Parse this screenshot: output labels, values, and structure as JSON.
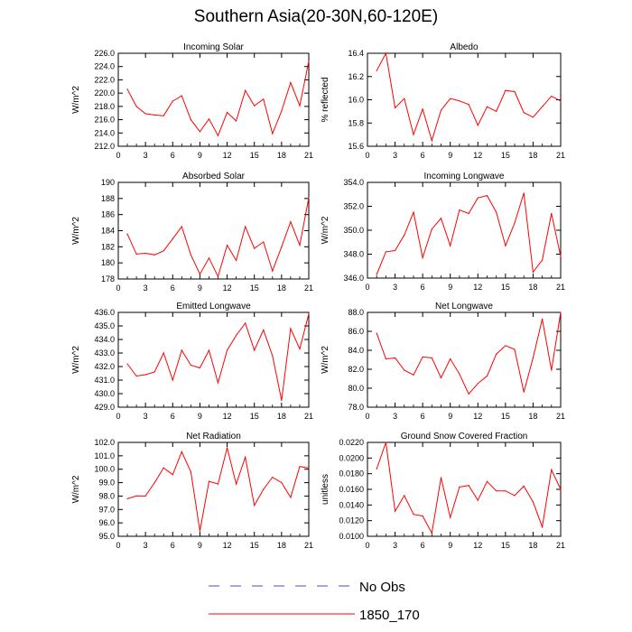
{
  "figure": {
    "title": "Southern Asia(20-30N,60-120E)",
    "legend": [
      {
        "label": "No Obs",
        "color": "#4b4bbf",
        "dashed": true
      },
      {
        "label": "1850_170",
        "color": "#ff0000",
        "dashed": false
      }
    ]
  },
  "chart_data": [
    {
      "type": "line",
      "title": "Incoming Solar",
      "ylabel": "W/m^2",
      "xlim": [
        0,
        21
      ],
      "ylim": [
        212,
        226
      ],
      "xticks": [
        0,
        3,
        6,
        9,
        12,
        15,
        18,
        21
      ],
      "yticks": [
        212,
        214,
        216,
        218,
        220,
        222,
        224,
        226
      ],
      "ytick_labels": [
        "212.0",
        "214.0",
        "216.0",
        "218.0",
        "220.0",
        "222.0",
        "224.0",
        "226.0"
      ],
      "series": [
        {
          "name": "1850_170",
          "color": "#ff0000",
          "x": [
            1,
            2,
            3,
            4,
            5,
            6,
            7,
            8,
            9,
            10,
            11,
            12,
            13,
            14,
            15,
            16,
            17,
            18,
            19,
            20,
            21
          ],
          "values": [
            220.6,
            218.0,
            216.9,
            216.7,
            216.6,
            218.8,
            219.6,
            216.0,
            214.2,
            216.1,
            213.6,
            217.1,
            215.8,
            220.4,
            218.1,
            219.1,
            213.9,
            217.3,
            221.6,
            218.1,
            224.8
          ]
        }
      ]
    },
    {
      "type": "line",
      "title": "Albedo",
      "ylabel": "% reflected",
      "xlim": [
        0,
        21
      ],
      "ylim": [
        15.6,
        16.4
      ],
      "xticks": [
        0,
        3,
        6,
        9,
        12,
        15,
        18,
        21
      ],
      "yticks": [
        15.6,
        15.8,
        16.0,
        16.2,
        16.4
      ],
      "ytick_labels": [
        "15.6",
        "15.8",
        "16.0",
        "16.2",
        "16.4"
      ],
      "series": [
        {
          "name": "1850_170",
          "color": "#ff0000",
          "x": [
            1,
            2,
            3,
            4,
            5,
            6,
            7,
            8,
            9,
            10,
            11,
            12,
            13,
            14,
            15,
            16,
            17,
            18,
            19,
            20,
            21
          ],
          "values": [
            16.25,
            16.4,
            15.93,
            16.01,
            15.7,
            15.92,
            15.65,
            15.91,
            16.01,
            15.99,
            15.96,
            15.78,
            15.94,
            15.9,
            16.08,
            16.07,
            15.89,
            15.85,
            15.94,
            16.03,
            15.99
          ]
        }
      ]
    },
    {
      "type": "line",
      "title": "Absorbed Solar",
      "ylabel": "W/m^2",
      "xlim": [
        0,
        21
      ],
      "ylim": [
        178,
        190
      ],
      "xticks": [
        0,
        3,
        6,
        9,
        12,
        15,
        18,
        21
      ],
      "yticks": [
        178,
        180,
        182,
        184,
        186,
        188,
        190
      ],
      "ytick_labels": [
        "178",
        "180",
        "182",
        "184",
        "186",
        "188",
        "190"
      ],
      "series": [
        {
          "name": "1850_170",
          "color": "#ff0000",
          "x": [
            1,
            2,
            3,
            4,
            5,
            6,
            7,
            8,
            9,
            10,
            11,
            12,
            13,
            14,
            15,
            16,
            17,
            18,
            19,
            20,
            21
          ],
          "values": [
            183.6,
            181.1,
            181.2,
            181.0,
            181.5,
            183.0,
            184.5,
            181.0,
            178.6,
            180.6,
            178.3,
            182.2,
            180.3,
            184.5,
            181.8,
            182.6,
            179.0,
            182.0,
            185.1,
            182.2,
            188.1
          ]
        }
      ]
    },
    {
      "type": "line",
      "title": "Incoming Longwave",
      "ylabel": "W/m^2",
      "xlim": [
        0,
        21
      ],
      "ylim": [
        346,
        354
      ],
      "xticks": [
        0,
        3,
        6,
        9,
        12,
        15,
        18,
        21
      ],
      "yticks": [
        346,
        348,
        350,
        352,
        354
      ],
      "ytick_labels": [
        "346.0",
        "348.0",
        "350.0",
        "352.0",
        "354.0"
      ],
      "series": [
        {
          "name": "1850_170",
          "color": "#ff0000",
          "x": [
            1,
            2,
            3,
            4,
            5,
            6,
            7,
            8,
            9,
            10,
            11,
            12,
            13,
            14,
            15,
            16,
            17,
            18,
            19,
            20,
            21
          ],
          "values": [
            346.3,
            348.2,
            348.3,
            349.6,
            351.5,
            347.7,
            350.1,
            351.0,
            348.7,
            351.7,
            351.4,
            352.7,
            352.9,
            351.5,
            348.7,
            350.6,
            353.1,
            346.5,
            347.5,
            351.4,
            347.8
          ]
        }
      ]
    },
    {
      "type": "line",
      "title": "Emitted Longwave",
      "ylabel": "W/m^2",
      "xlim": [
        0,
        21
      ],
      "ylim": [
        429,
        436
      ],
      "xticks": [
        0,
        3,
        6,
        9,
        12,
        15,
        18,
        21
      ],
      "yticks": [
        429,
        430,
        431,
        432,
        433,
        434,
        435,
        436
      ],
      "ytick_labels": [
        "429.0",
        "430.0",
        "431.0",
        "432.0",
        "433.0",
        "434.0",
        "435.0",
        "436.0"
      ],
      "series": [
        {
          "name": "1850_170",
          "color": "#ff0000",
          "x": [
            1,
            2,
            3,
            4,
            5,
            6,
            7,
            8,
            9,
            10,
            11,
            12,
            13,
            14,
            15,
            16,
            17,
            18,
            19,
            20,
            21
          ],
          "values": [
            432.2,
            431.3,
            431.4,
            431.6,
            433.0,
            431.0,
            433.2,
            432.1,
            431.9,
            433.2,
            430.8,
            433.2,
            434.3,
            435.2,
            433.2,
            434.7,
            432.8,
            429.5,
            434.8,
            433.3,
            435.9
          ]
        }
      ]
    },
    {
      "type": "line",
      "title": "Net Longwave",
      "ylabel": "W/m^2",
      "xlim": [
        0,
        21
      ],
      "ylim": [
        78,
        88
      ],
      "xticks": [
        0,
        3,
        6,
        9,
        12,
        15,
        18,
        21
      ],
      "yticks": [
        78,
        80,
        82,
        84,
        86,
        88
      ],
      "ytick_labels": [
        "78.0",
        "80.0",
        "82.0",
        "84.0",
        "86.0",
        "88.0"
      ],
      "series": [
        {
          "name": "1850_170",
          "color": "#ff0000",
          "x": [
            1,
            2,
            3,
            4,
            5,
            6,
            7,
            8,
            9,
            10,
            11,
            12,
            13,
            14,
            15,
            16,
            17,
            18,
            19,
            20,
            21
          ],
          "values": [
            85.8,
            83.1,
            83.2,
            81.9,
            81.4,
            83.3,
            83.2,
            81.1,
            83.1,
            81.5,
            79.4,
            80.5,
            81.3,
            83.6,
            84.5,
            84.1,
            79.6,
            83.2,
            87.3,
            81.9,
            88.0
          ]
        }
      ]
    },
    {
      "type": "line",
      "title": "Net Radiation",
      "ylabel": "W/m^2",
      "xlim": [
        0,
        21
      ],
      "ylim": [
        95,
        102
      ],
      "xticks": [
        0,
        3,
        6,
        9,
        12,
        15,
        18,
        21
      ],
      "yticks": [
        95,
        96,
        97,
        98,
        99,
        100,
        101,
        102
      ],
      "ytick_labels": [
        "95.0",
        "96.0",
        "97.0",
        "98.0",
        "99.0",
        "100.0",
        "101.0",
        "102.0"
      ],
      "series": [
        {
          "name": "1850_170",
          "color": "#ff0000",
          "x": [
            1,
            2,
            3,
            4,
            5,
            6,
            7,
            8,
            9,
            10,
            11,
            12,
            13,
            14,
            15,
            16,
            17,
            18,
            19,
            20,
            21
          ],
          "values": [
            97.8,
            98.0,
            98.0,
            99.0,
            100.1,
            99.6,
            101.3,
            99.8,
            95.4,
            99.1,
            98.9,
            101.6,
            98.9,
            100.9,
            97.3,
            98.5,
            99.4,
            99.0,
            97.9,
            100.2,
            100.1
          ]
        }
      ]
    },
    {
      "type": "line",
      "title": "Ground Snow Covered Fraction",
      "ylabel": "unitless",
      "xlim": [
        0,
        21
      ],
      "ylim": [
        0.01,
        0.022
      ],
      "xticks": [
        0,
        3,
        6,
        9,
        12,
        15,
        18,
        21
      ],
      "yticks": [
        0.01,
        0.012,
        0.014,
        0.016,
        0.018,
        0.02,
        0.022
      ],
      "ytick_labels": [
        "0.0100",
        "0.0120",
        "0.0140",
        "0.0160",
        "0.0180",
        "0.0200",
        "0.0220"
      ],
      "series": [
        {
          "name": "1850_170",
          "color": "#ff0000",
          "x": [
            1,
            2,
            3,
            4,
            5,
            6,
            7,
            8,
            9,
            10,
            11,
            12,
            13,
            14,
            15,
            16,
            17,
            18,
            19,
            20,
            21
          ],
          "values": [
            0.0186,
            0.022,
            0.0132,
            0.0152,
            0.0128,
            0.0126,
            0.0104,
            0.0175,
            0.0124,
            0.0163,
            0.0165,
            0.0146,
            0.017,
            0.0158,
            0.0158,
            0.0152,
            0.0164,
            0.0144,
            0.0112,
            0.0185,
            0.016
          ]
        }
      ]
    }
  ]
}
